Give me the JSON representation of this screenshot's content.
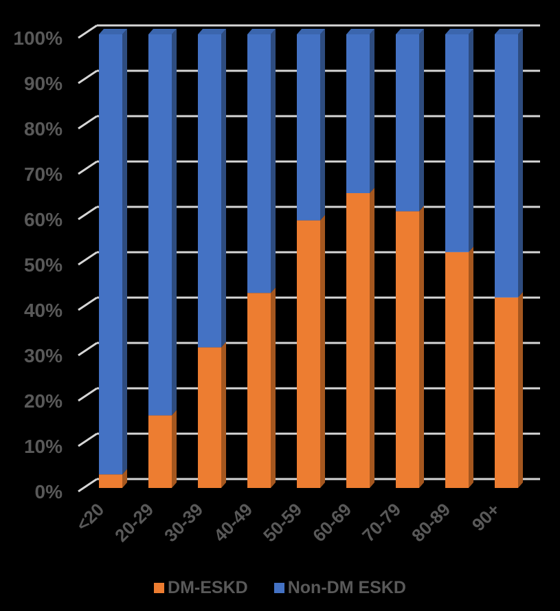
{
  "background_color": "#000000",
  "chart_data": {
    "type": "bar",
    "variant": "3d-100%-stacked-column",
    "title": "",
    "xlabel": "",
    "ylabel": "",
    "categories": [
      "<20",
      "20-29",
      "30-39",
      "40-49",
      "50-59",
      "60-69",
      "70-79",
      "80-89",
      "90+"
    ],
    "series": [
      {
        "name": "DM-ESKD",
        "color": "#ED7D31",
        "side_color": "#A5571F",
        "top_color": "#C96A1F",
        "values": [
          3,
          16,
          31,
          43,
          59,
          65,
          61,
          52,
          42
        ]
      },
      {
        "name": "Non-DM ESKD",
        "color": "#4472C4",
        "side_color": "#2E4C7F",
        "top_color": "#3B66AE",
        "values": [
          97,
          84,
          69,
          57,
          41,
          35,
          39,
          48,
          58
        ]
      }
    ],
    "y_ticks": [
      "0%",
      "10%",
      "20%",
      "30%",
      "40%",
      "50%",
      "60%",
      "70%",
      "80%",
      "90%",
      "100%"
    ],
    "ylim": [
      0,
      100
    ],
    "grid": true,
    "gridline_color": "#D6D6D6",
    "axis_text_color": "#595959",
    "legend_position": "bottom"
  }
}
